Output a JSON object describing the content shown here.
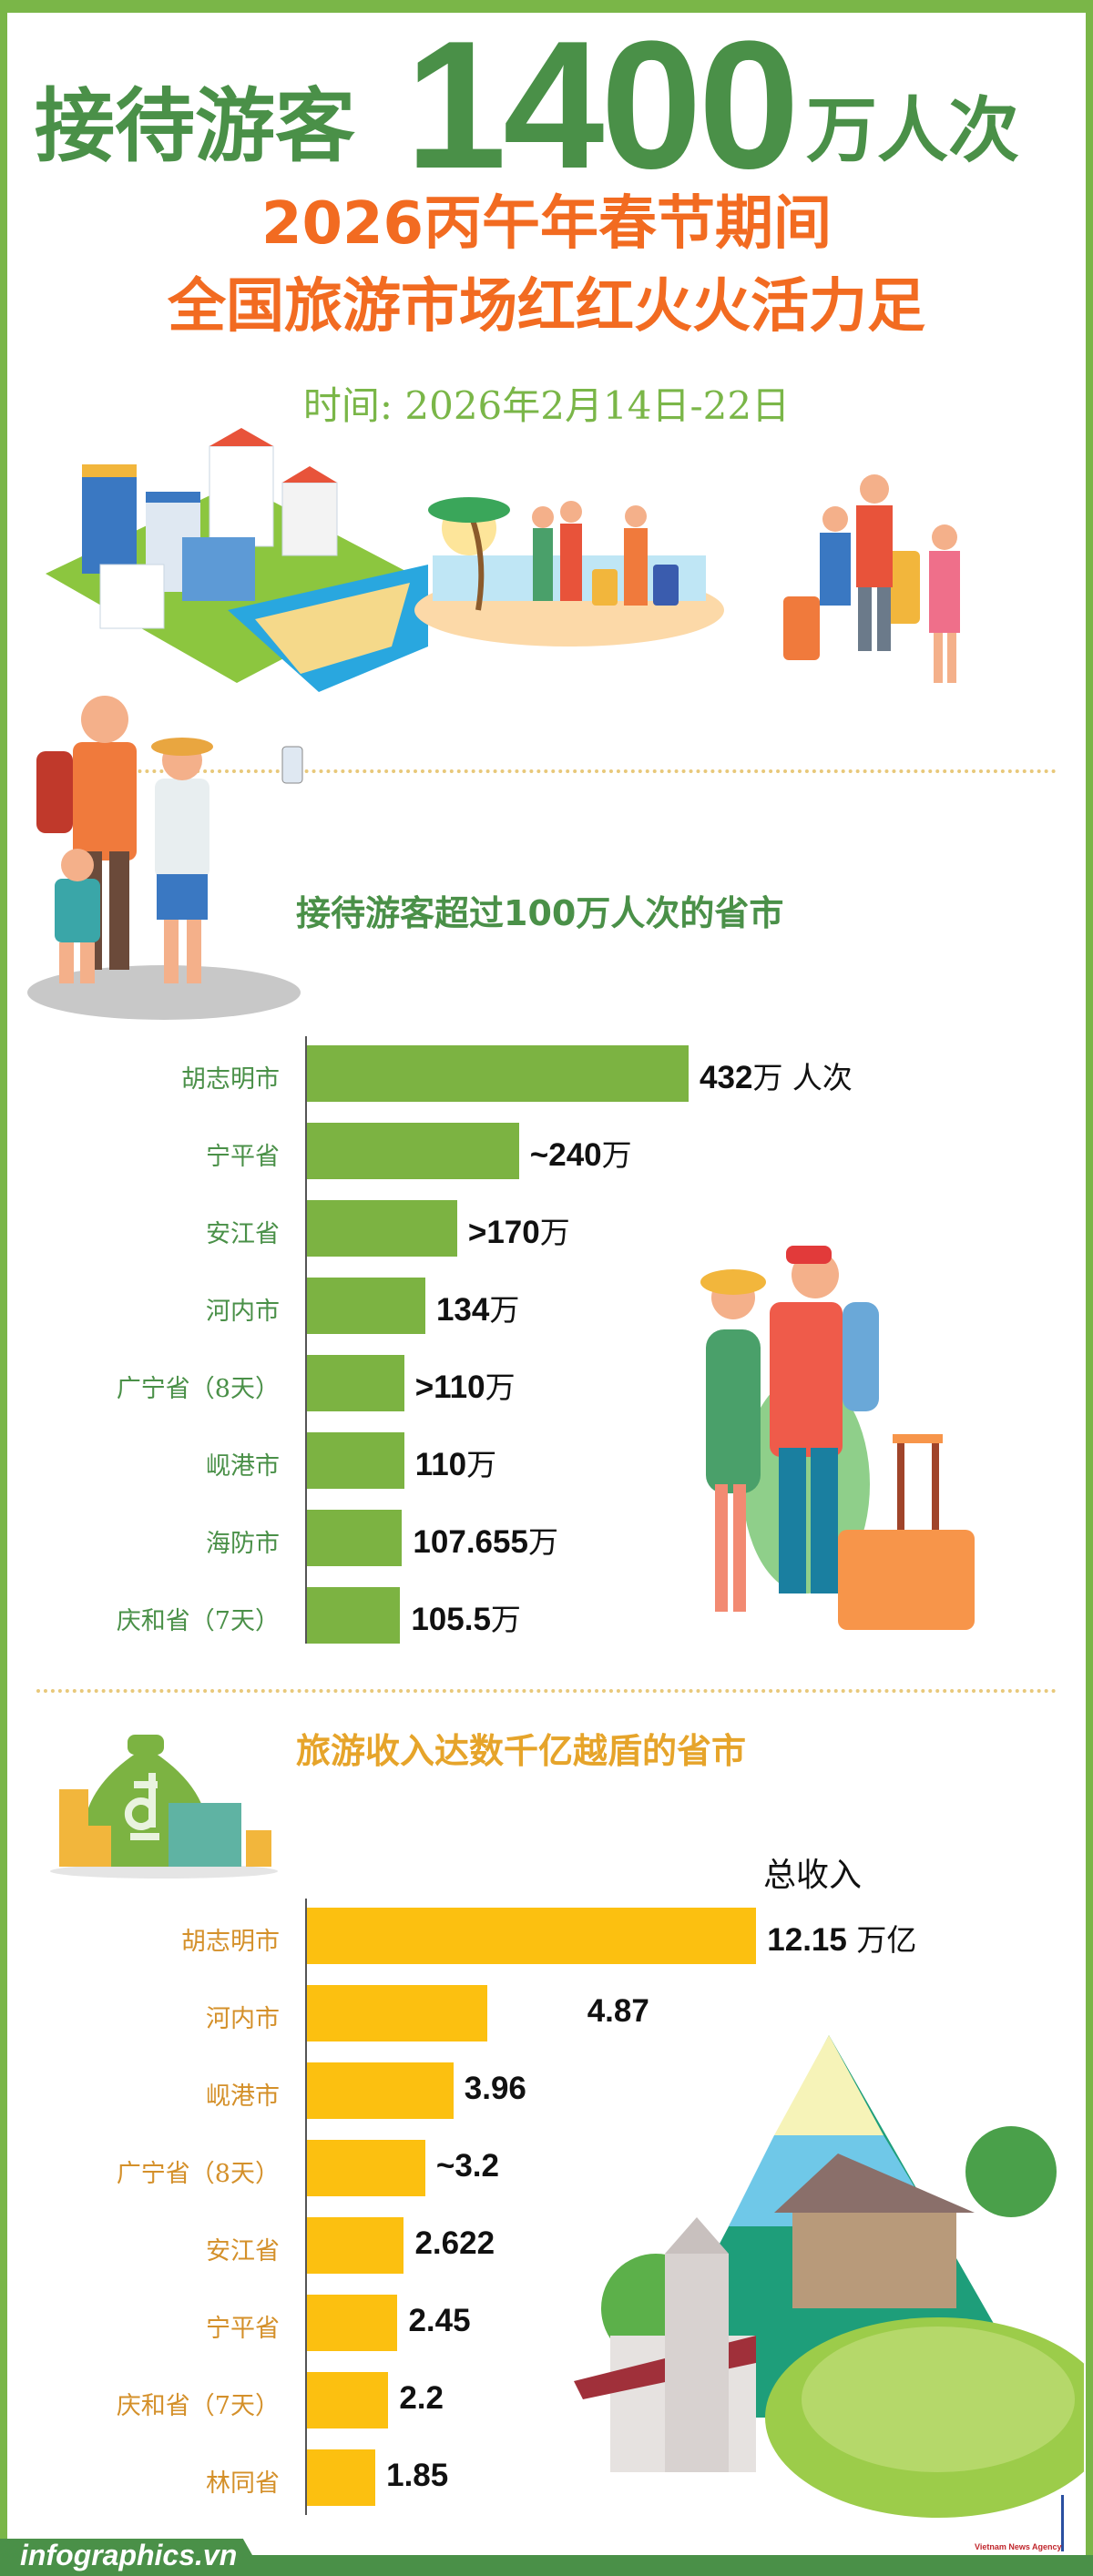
{
  "header": {
    "title_left": "接待游客",
    "title_number": "1400",
    "title_right": "万人次",
    "subtitle_line1": "2026丙午年春节期间",
    "subtitle_line2": "全国旅游市场红红火火活力足",
    "date": "时间: 2026年2月14日-22日"
  },
  "colors": {
    "border": "#7ab648",
    "title_green": "#4a9048",
    "orange": "#f26b21",
    "bar_green": "#7cb342",
    "bar_yellow": "#fcc010",
    "label_gold": "#d4902a"
  },
  "icons": [
    "city-illustration",
    "beach-illustration",
    "travelers-illustration",
    "family-illustration",
    "couple-illustration",
    "money-bag-icon",
    "mountain-landscape-illustration"
  ],
  "chart_data": [
    {
      "type": "bar",
      "orientation": "horizontal",
      "title": "接待游客超过100万人次的省市",
      "unit": "万人次",
      "categories": [
        "胡志明市",
        "宁平省",
        "安江省",
        "河内市",
        "广宁省（8天）",
        "岘港市",
        "海防市",
        "庆和省（7天）"
      ],
      "values": [
        432,
        240,
        170,
        134,
        110,
        110,
        107.655,
        105.5
      ],
      "labels": [
        {
          "num": "432",
          "unit": "万 人次"
        },
        {
          "num": "~240",
          "unit": "万"
        },
        {
          "num": ">170",
          "unit": "万"
        },
        {
          "num": "134",
          "unit": "万"
        },
        {
          "num": ">110",
          "unit": "万"
        },
        {
          "num": "110",
          "unit": "万"
        },
        {
          "num": "107.655",
          "unit": "万"
        },
        {
          "num": "105.5",
          "unit": "万"
        }
      ],
      "color": "#7cb342",
      "grid": false
    },
    {
      "type": "bar",
      "orientation": "horizontal",
      "title": "旅游收入达数千亿越盾的省市",
      "series_label": "总收入",
      "unit": "万亿",
      "categories": [
        "胡志明市",
        "河内市",
        "岘港市",
        "广宁省（8天）",
        "安江省",
        "宁平省",
        "庆和省（7天）",
        "林同省"
      ],
      "values": [
        12.15,
        4.87,
        3.96,
        3.2,
        2.622,
        2.45,
        2.2,
        1.85
      ],
      "labels": [
        {
          "num": "12.15",
          "unit": " 万亿"
        },
        {
          "num": "4.87",
          "unit": ""
        },
        {
          "num": "3.96",
          "unit": ""
        },
        {
          "num": "~3.2",
          "unit": ""
        },
        {
          "num": "2.622",
          "unit": ""
        },
        {
          "num": "2.45",
          "unit": ""
        },
        {
          "num": "2.2",
          "unit": ""
        },
        {
          "num": "1.85",
          "unit": ""
        }
      ],
      "color": "#fcc010",
      "grid": false
    }
  ],
  "footer": {
    "site": "infographics.vn",
    "agency": "Vietnam News Agency"
  }
}
